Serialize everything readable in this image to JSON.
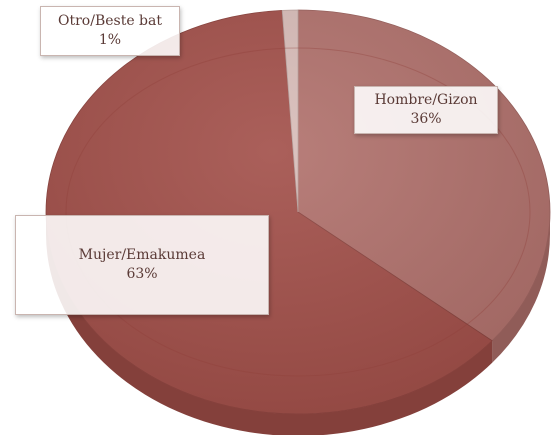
{
  "chart_data": {
    "type": "pie",
    "style": "3d",
    "slices": [
      {
        "category": "Hombre/Gizon",
        "value": 36,
        "value_label": "36%",
        "color": "#b0706b"
      },
      {
        "category": "Mujer/Emakumea",
        "value": 63,
        "value_label": "63%",
        "color": "#a14e48"
      },
      {
        "category": "Otro/Beste bat",
        "value": 1,
        "value_label": "1%",
        "color": "#d8bcb8"
      }
    ],
    "title": "",
    "legend": "none"
  }
}
